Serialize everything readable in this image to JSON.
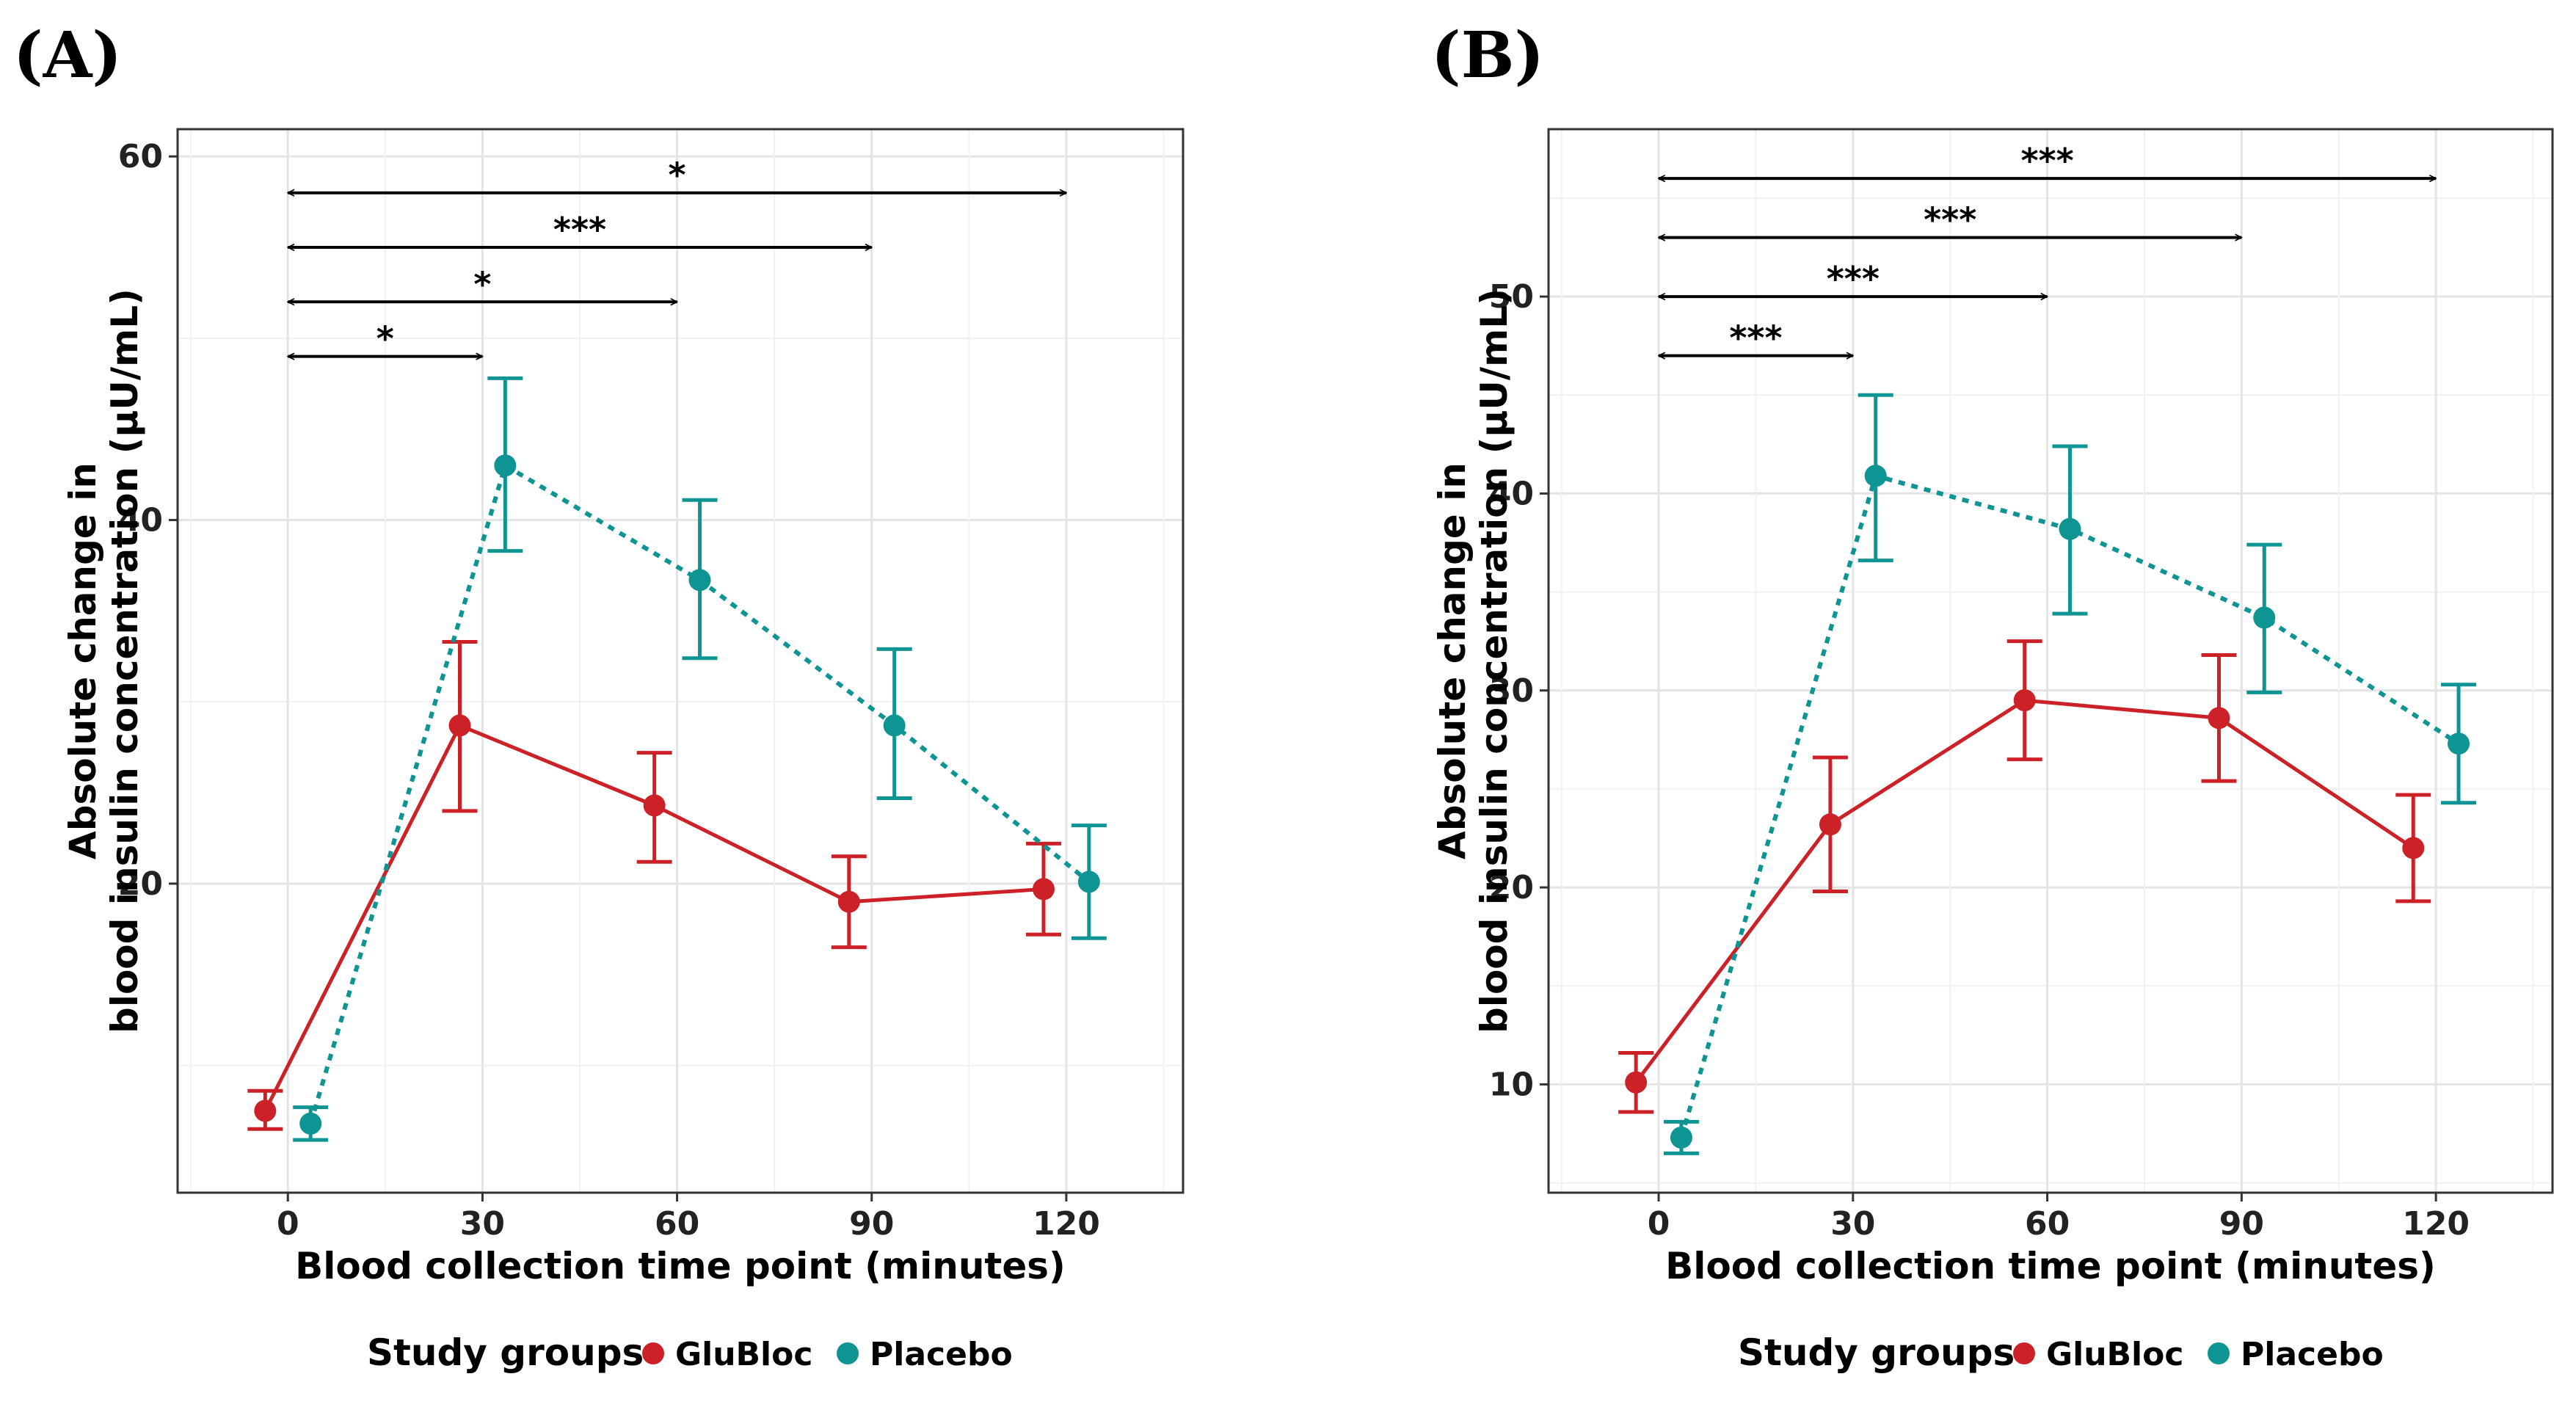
{
  "legend": {
    "title": "Study groups",
    "entries": [
      {
        "name": "GluBloc",
        "color": "#cc2127"
      },
      {
        "name": "Placebo",
        "color": "#0f9494"
      }
    ]
  },
  "chart_data": [
    {
      "panel_label": "(A)",
      "type": "line",
      "xlabel": "Blood collection time point (minutes)",
      "ylabel_line1": "Absolute change in",
      "ylabel_line2": "blood insulin concentration (µU/mL)",
      "x_ticks": [
        0,
        30,
        60,
        90,
        120
      ],
      "y_ticks": [
        20,
        40,
        60
      ],
      "xlim": [
        -17,
        138
      ],
      "ylim": [
        3,
        61.5
      ],
      "grid": true,
      "legend_position": "bottom",
      "series": [
        {
          "name": "GluBloc",
          "color": "#cc2127",
          "dash": "solid",
          "x": [
            0,
            30,
            60,
            90,
            120
          ],
          "x_dodge": -3.5,
          "y": [
            7.5,
            28.7,
            24.3,
            19.0,
            19.7
          ],
          "err_low": [
            6.5,
            24.0,
            21.2,
            16.5,
            17.2
          ],
          "err_high": [
            8.6,
            33.3,
            27.2,
            21.5,
            22.2
          ]
        },
        {
          "name": "Placebo",
          "color": "#0f9494",
          "dash": "dotted",
          "x": [
            0,
            30,
            60,
            90,
            120
          ],
          "x_dodge": 3.5,
          "y": [
            6.8,
            43.0,
            36.7,
            28.7,
            20.1
          ],
          "err_low": [
            5.9,
            38.3,
            32.4,
            24.7,
            17.0
          ],
          "err_high": [
            7.7,
            47.8,
            41.1,
            32.9,
            23.2
          ]
        }
      ],
      "comparisons": [
        {
          "from": 0,
          "to": 30,
          "y": 49.0,
          "label": "*"
        },
        {
          "from": 0,
          "to": 60,
          "y": 52.0,
          "label": "*"
        },
        {
          "from": 0,
          "to": 90,
          "y": 55.0,
          "label": "***"
        },
        {
          "from": 0,
          "to": 120,
          "y": 58.0,
          "label": "*"
        }
      ]
    },
    {
      "panel_label": "(B)",
      "type": "line",
      "xlabel": "Blood collection time point (minutes)",
      "ylabel_line1": "Absolute change in",
      "ylabel_line2": "blood insulin concentration (µU/mL)",
      "x_ticks": [
        0,
        30,
        60,
        90,
        120
      ],
      "y_ticks": [
        10,
        20,
        30,
        40,
        50
      ],
      "xlim": [
        -17,
        138
      ],
      "ylim": [
        4.5,
        58.5
      ],
      "grid": true,
      "legend_position": "bottom",
      "series": [
        {
          "name": "GluBloc",
          "color": "#cc2127",
          "dash": "solid",
          "x": [
            0,
            30,
            60,
            90,
            120
          ],
          "x_dodge": -3.5,
          "y": [
            10.1,
            23.2,
            29.5,
            28.6,
            22.0
          ],
          "err_low": [
            8.6,
            19.8,
            26.5,
            25.4,
            19.3
          ],
          "err_high": [
            11.6,
            26.6,
            32.5,
            31.8,
            24.7
          ]
        },
        {
          "name": "Placebo",
          "color": "#0f9494",
          "dash": "dotted",
          "x": [
            0,
            30,
            60,
            90,
            120
          ],
          "x_dodge": 3.5,
          "y": [
            7.3,
            40.9,
            38.2,
            33.7,
            27.3
          ],
          "err_low": [
            6.5,
            36.6,
            33.9,
            29.9,
            24.3
          ],
          "err_high": [
            8.1,
            45.0,
            42.4,
            37.4,
            30.3
          ]
        }
      ],
      "comparisons": [
        {
          "from": 0,
          "to": 30,
          "y": 47.0,
          "label": "***"
        },
        {
          "from": 0,
          "to": 60,
          "y": 50.0,
          "label": "***"
        },
        {
          "from": 0,
          "to": 90,
          "y": 53.0,
          "label": "***"
        },
        {
          "from": 0,
          "to": 120,
          "y": 56.0,
          "label": "***"
        }
      ]
    }
  ]
}
